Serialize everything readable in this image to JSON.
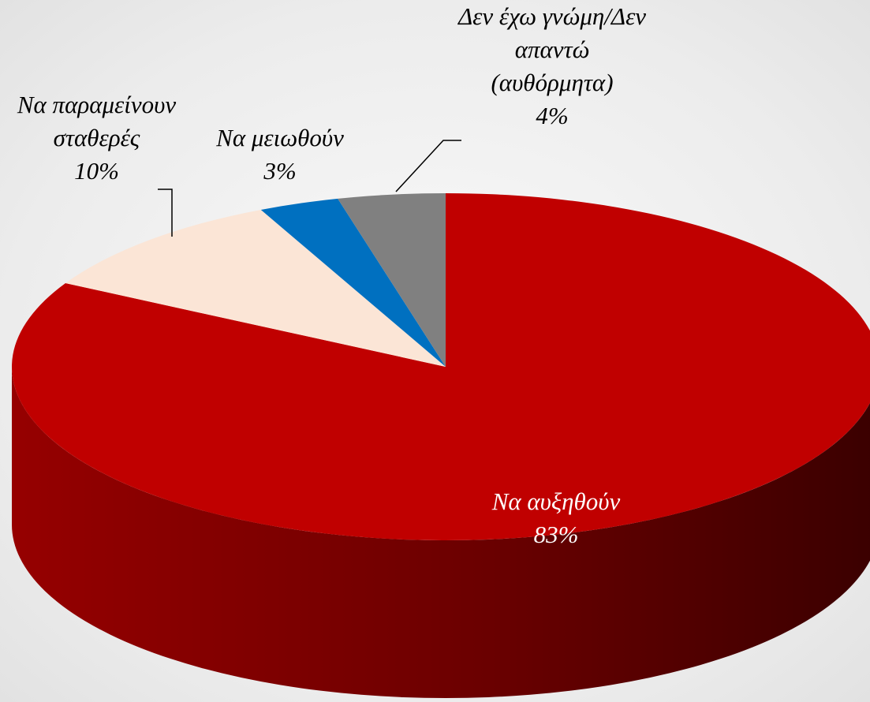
{
  "chart_data": {
    "type": "pie3d",
    "categories": [
      "Να αυξηθούν",
      "Να παραμείνουν σταθερές",
      "Να μειωθούν",
      "Δεν έχω γνώμη/Δεν απαντώ (αυθόρμητα)"
    ],
    "values": [
      83,
      10,
      3,
      4
    ],
    "value_labels": [
      "83%",
      "10%",
      "3%",
      "4%"
    ],
    "colors": [
      "#c00000",
      "#fbe5d6",
      "#0070c0",
      "#808080"
    ]
  }
}
